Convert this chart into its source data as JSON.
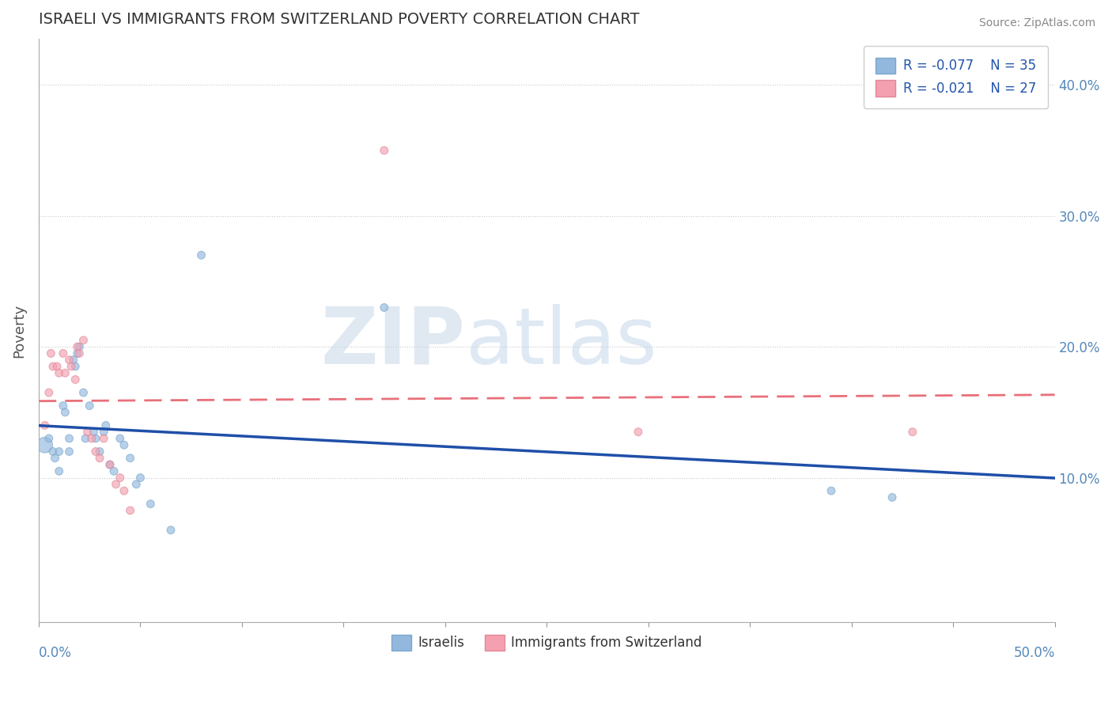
{
  "title": "ISRAELI VS IMMIGRANTS FROM SWITZERLAND POVERTY CORRELATION CHART",
  "source": "Source: ZipAtlas.com",
  "ylabel": "Poverty",
  "ytick_labels": [
    "10.0%",
    "20.0%",
    "30.0%",
    "40.0%"
  ],
  "ytick_values": [
    0.1,
    0.2,
    0.3,
    0.4
  ],
  "xlim": [
    0.0,
    0.5
  ],
  "ylim": [
    -0.01,
    0.435
  ],
  "legend_r_blue": "R = -0.077",
  "legend_n_blue": "N = 35",
  "legend_r_pink": "R = -0.021",
  "legend_n_pink": "N = 27",
  "legend_label_blue": "Israelis",
  "legend_label_pink": "Immigrants from Switzerland",
  "watermark_zip": "ZIP",
  "watermark_atlas": "atlas",
  "blue_color": "#92b8de",
  "pink_color": "#f4a0b0",
  "blue_line_color": "#1f4fa8",
  "pink_line_color": "#e8707a",
  "background_color": "#ffffff",
  "israelis_x": [
    0.003,
    0.005,
    0.007,
    0.008,
    0.01,
    0.01,
    0.012,
    0.013,
    0.015,
    0.015,
    0.017,
    0.018,
    0.019,
    0.02,
    0.022,
    0.023,
    0.025,
    0.027,
    0.028,
    0.03,
    0.032,
    0.033,
    0.035,
    0.037,
    0.04,
    0.042,
    0.045,
    0.048,
    0.05,
    0.055,
    0.065,
    0.08,
    0.17,
    0.39,
    0.42
  ],
  "israelis_y": [
    0.125,
    0.13,
    0.12,
    0.115,
    0.12,
    0.105,
    0.155,
    0.15,
    0.13,
    0.12,
    0.19,
    0.185,
    0.195,
    0.2,
    0.165,
    0.13,
    0.155,
    0.135,
    0.13,
    0.12,
    0.135,
    0.14,
    0.11,
    0.105,
    0.13,
    0.125,
    0.115,
    0.095,
    0.1,
    0.08,
    0.06,
    0.27,
    0.23,
    0.09,
    0.085
  ],
  "israelis_size": [
    200,
    50,
    50,
    50,
    50,
    50,
    50,
    50,
    50,
    50,
    50,
    50,
    50,
    50,
    50,
    50,
    50,
    50,
    50,
    50,
    50,
    50,
    50,
    50,
    50,
    50,
    50,
    50,
    50,
    50,
    50,
    50,
    50,
    50,
    50
  ],
  "swiss_x": [
    0.003,
    0.005,
    0.006,
    0.007,
    0.009,
    0.01,
    0.012,
    0.013,
    0.015,
    0.016,
    0.018,
    0.019,
    0.02,
    0.022,
    0.024,
    0.026,
    0.028,
    0.03,
    0.032,
    0.035,
    0.038,
    0.04,
    0.042,
    0.045,
    0.17,
    0.295,
    0.43
  ],
  "swiss_y": [
    0.14,
    0.165,
    0.195,
    0.185,
    0.185,
    0.18,
    0.195,
    0.18,
    0.19,
    0.185,
    0.175,
    0.2,
    0.195,
    0.205,
    0.135,
    0.13,
    0.12,
    0.115,
    0.13,
    0.11,
    0.095,
    0.1,
    0.09,
    0.075,
    0.35,
    0.135,
    0.135
  ],
  "swiss_size": [
    50,
    50,
    50,
    50,
    50,
    50,
    50,
    50,
    50,
    50,
    50,
    50,
    50,
    50,
    50,
    50,
    50,
    50,
    50,
    50,
    50,
    50,
    50,
    50,
    50,
    50,
    50
  ]
}
